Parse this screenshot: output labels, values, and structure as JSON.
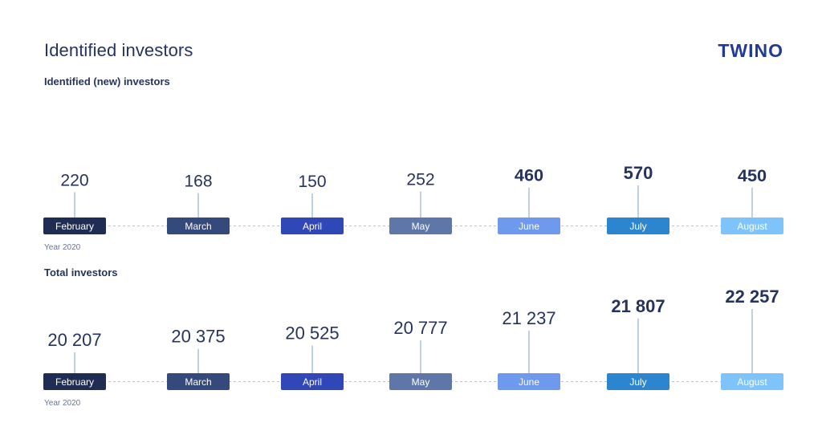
{
  "header": {
    "title": "Identified investors",
    "subtitle": "Identified (new) investors",
    "logo": "TWINO"
  },
  "sections": {
    "new": {
      "year_label": "Year 2020"
    },
    "total": {
      "label": "Total investors",
      "year_label": "Year 2020"
    }
  },
  "colors": {
    "months": [
      "#1f2d54",
      "#34497c",
      "#2f47b7",
      "#5f76a9",
      "#6e99ec",
      "#2c86cf",
      "#7fc3fb"
    ],
    "stem": "#7fa0c4",
    "dash": "#b9bfcc"
  },
  "chart_data": [
    {
      "type": "bar",
      "title": "Identified (new) investors",
      "categories": [
        "February",
        "March",
        "April",
        "May",
        "June",
        "July",
        "August"
      ],
      "values": [
        220,
        168,
        150,
        252,
        460,
        570,
        450
      ],
      "value_labels": [
        "220",
        "168",
        "150",
        "252",
        "460",
        "570",
        "450"
      ],
      "xlabel": "Year 2020"
    },
    {
      "type": "bar",
      "title": "Total investors",
      "categories": [
        "February",
        "March",
        "April",
        "May",
        "June",
        "July",
        "August"
      ],
      "values": [
        20207,
        20375,
        20525,
        20777,
        21237,
        21807,
        22257
      ],
      "value_labels": [
        "20 207",
        "20 375",
        "20 525",
        "20 777",
        "21 237",
        "21 807",
        "22 257"
      ],
      "xlabel": "Year 2020"
    }
  ]
}
